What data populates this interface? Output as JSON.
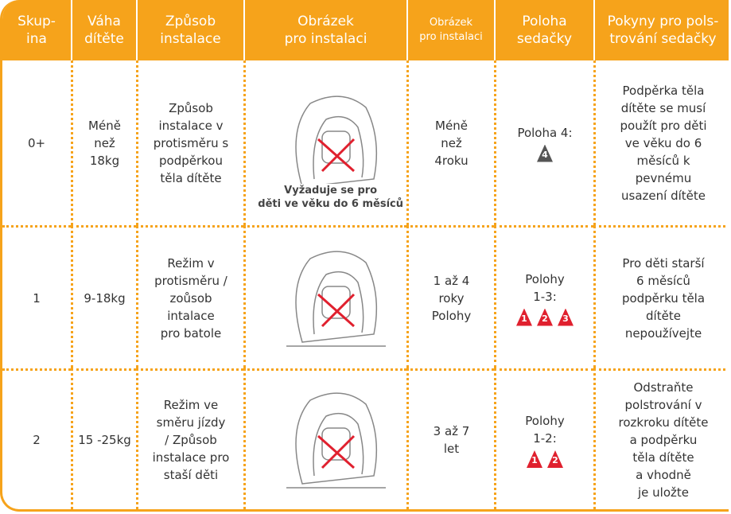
{
  "table": {
    "headers": [
      [
        "Skup-",
        "ina"
      ],
      [
        "Váha",
        "dítěte"
      ],
      [
        "Způsob",
        "instalace"
      ],
      [
        "Obrázek",
        "pro instalaci"
      ],
      [
        "Obrázek",
        "pro instalaci"
      ],
      [
        "Poloha",
        "sedačky"
      ],
      [
        "Pokyny pro pols-",
        "trování sedačky"
      ]
    ],
    "rows": [
      {
        "group": [
          "0+"
        ],
        "weight": [
          "Méně",
          "než",
          "18kg"
        ],
        "method": [
          "Způsob",
          "instalace v",
          "protisměru s",
          "podpěrkou",
          "těla dítěte"
        ],
        "caption": [
          "Vyžaduje se pro",
          "děti ve věku do 6 měsíců"
        ],
        "age": [
          "Méně",
          "než",
          "4roku"
        ],
        "position": [
          "Poloha 4:"
        ],
        "badges": [
          "4"
        ],
        "badge_color": "#555555",
        "instructions": [
          "Podpěrka těla",
          "dítěte se musí",
          "použít pro děti",
          "ve věku do 6",
          "měsíců k",
          "pevnému",
          "usazení dítěte"
        ]
      },
      {
        "group": [
          "1"
        ],
        "weight": [
          "9-18kg"
        ],
        "method": [
          "Režim v",
          "protisměru /",
          "zoůsob",
          "intalace",
          "pro batole"
        ],
        "caption": [],
        "age": [
          "1 až 4",
          "roky",
          "Polohy"
        ],
        "position": [
          "Polohy",
          "1-3:"
        ],
        "badges": [
          "1",
          "2",
          "3"
        ],
        "badge_color": "#e0202e",
        "instructions": [
          "Pro děti starší",
          "6 měsíců",
          "podpěrku těla",
          "dítěte",
          "nepoužívejte"
        ]
      },
      {
        "group": [
          "2"
        ],
        "weight": [
          "15 -25kg"
        ],
        "method": [
          "Režim ve",
          "směru jízdy",
          "/ Způsob",
          "instalace pro",
          "staší děti"
        ],
        "caption": [],
        "age": [
          "3 až 7",
          "let"
        ],
        "position": [
          "Polohy",
          "1-2:"
        ],
        "badges": [
          "1",
          "2"
        ],
        "badge_color": "#e0202e",
        "instructions": [
          "Odstraňte",
          "polstrování v",
          "rozkroku dítěte",
          "a podpěrku",
          "těla dítěte",
          "a vhodně",
          "je uložte"
        ]
      }
    ]
  }
}
